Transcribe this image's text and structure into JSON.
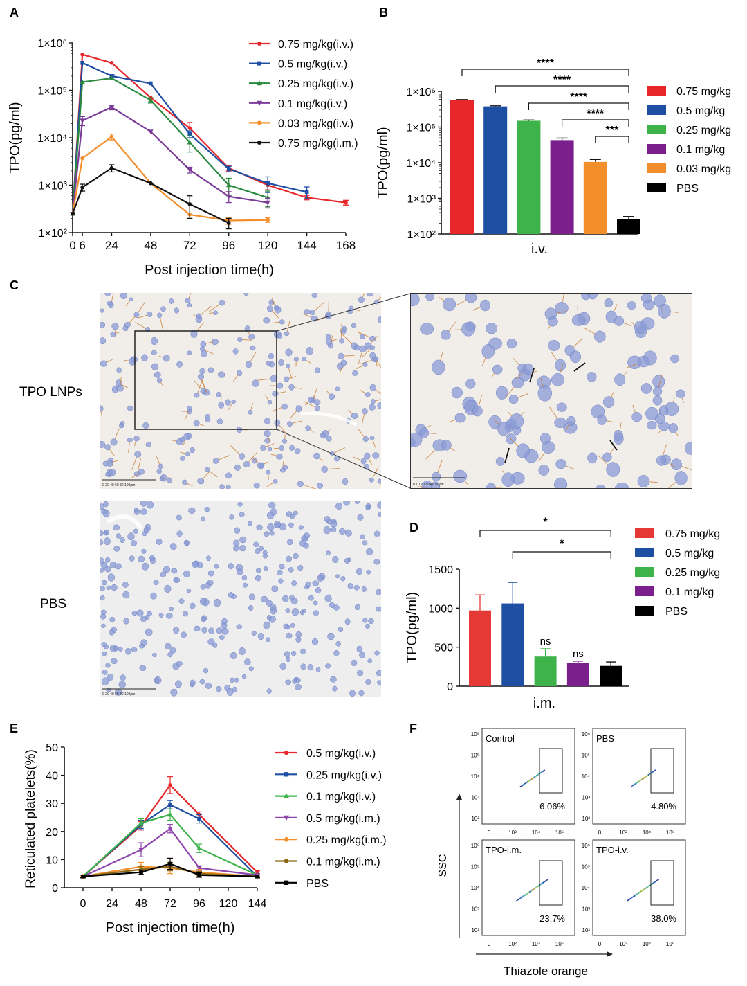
{
  "panels": {
    "A": "A",
    "B": "B",
    "C": "C",
    "D": "D",
    "E": "E",
    "F": "F"
  },
  "chart_data": [
    {
      "id": "A",
      "type": "line",
      "yscale": "log",
      "ylabel": "TPO(pg/ml)",
      "xlabel": "Post injection time(h)",
      "xticks": [
        0,
        6,
        24,
        48,
        72,
        96,
        120,
        144,
        168
      ],
      "xtick_labels": [
        "0",
        "6",
        "24",
        "48",
        "72",
        "96",
        "120",
        "144",
        "168"
      ],
      "ytick_labels": [
        "1×10²",
        "1×10³",
        "1×10⁴",
        "1×10⁵",
        "1×10⁶"
      ],
      "ylim": [
        100,
        1000000
      ],
      "series": [
        {
          "name": "0.75 mg/kg(i.v.)",
          "color": "#e8272a",
          "x": [
            0,
            6,
            24,
            48,
            72,
            96,
            120,
            144,
            168
          ],
          "values": [
            250,
            570000,
            380000,
            70000,
            16000,
            2300,
            1000,
            550,
            430
          ],
          "err": [
            0,
            0,
            0,
            0,
            5000,
            300,
            200,
            60,
            50
          ]
        },
        {
          "name": "0.5 mg/kg(i.v.)",
          "color": "#1f4fa3",
          "x": [
            0,
            6,
            24,
            48,
            72,
            96,
            120,
            144,
            168
          ],
          "values": [
            250,
            380000,
            200000,
            140000,
            12000,
            2200,
            1100,
            720,
            null
          ],
          "err": [
            0,
            0,
            15000,
            0,
            2000,
            300,
            400,
            200,
            0
          ]
        },
        {
          "name": "0.25 mg/kg(i.v.)",
          "color": "#2a8a3e",
          "x": [
            0,
            6,
            24,
            48,
            72,
            96,
            120
          ],
          "values": [
            250,
            150000,
            180000,
            62000,
            8000,
            1000,
            550
          ],
          "err": [
            0,
            0,
            0,
            8000,
            3000,
            400,
            200
          ]
        },
        {
          "name": "0.1 mg/kg(i.v.)",
          "color": "#7b3b98",
          "x": [
            0,
            6,
            24,
            48,
            72,
            96,
            120
          ],
          "values": [
            250,
            23000,
            44000,
            13500,
            2100,
            580,
            430
          ],
          "err": [
            0,
            5000,
            5000,
            0,
            300,
            150,
            100
          ]
        },
        {
          "name": "0.03 mg/kg(i.v.)",
          "color": "#f28e2b",
          "x": [
            0,
            6,
            24,
            48,
            72,
            96,
            120
          ],
          "values": [
            250,
            3700,
            10500,
            1100,
            240,
            180,
            185
          ],
          "err": [
            0,
            0,
            1500,
            0,
            0,
            30,
            20
          ]
        },
        {
          "name": "0.75 mg/kg(i.m.)",
          "color": "#111111",
          "x": [
            0,
            6,
            24,
            48,
            72,
            96
          ],
          "values": [
            250,
            900,
            2300,
            1100,
            400,
            160
          ],
          "err": [
            0,
            150,
            400,
            0,
            200,
            40
          ]
        }
      ]
    },
    {
      "id": "B",
      "type": "bar",
      "yscale": "log",
      "ylabel": "TPO(pg/ml)",
      "xlabel": "i.v.",
      "categories": [
        "0.75 mg/kg",
        "0.5 mg/kg",
        "0.25 mg/kg",
        "0.1 mg/kg",
        "0.03 mg/kg",
        "PBS"
      ],
      "colors": [
        "#e8272a",
        "#1f4fa3",
        "#3db34a",
        "#7b1f8c",
        "#f28e2b",
        "#000000"
      ],
      "values": [
        560000,
        380000,
        150000,
        43000,
        10500,
        260
      ],
      "err": [
        30000,
        15000,
        8000,
        6000,
        1800,
        50
      ],
      "ytick_labels": [
        "1×10²",
        "1×10³",
        "1×10⁴",
        "1×10⁵",
        "1×10⁶"
      ],
      "ylim": [
        100,
        1000000
      ],
      "significance": [
        "****",
        "****",
        "****",
        "****",
        "***"
      ]
    },
    {
      "id": "D",
      "type": "bar",
      "ylabel": "TPO(pg/ml)",
      "xlabel": "i.m.",
      "categories": [
        "0.75 mg/kg",
        "0.5 mg/kg",
        "0.25 mg/kg",
        "0.1 mg/kg",
        "PBS"
      ],
      "colors": [
        "#e53935",
        "#1f4fa3",
        "#3db34a",
        "#7b1f8c",
        "#000000"
      ],
      "values": [
        970,
        1060,
        380,
        300,
        260
      ],
      "err": [
        200,
        270,
        100,
        20,
        50
      ],
      "ylim": [
        0,
        1500
      ],
      "yticks": [
        0,
        500,
        1000,
        1500
      ],
      "ytick_labels": [
        "0",
        "500",
        "1000",
        "1500"
      ],
      "significance": [
        "*",
        "*"
      ],
      "bar_labels": [
        "",
        "",
        "ns",
        "ns",
        ""
      ]
    },
    {
      "id": "E",
      "type": "line",
      "ylabel": "Reticulated platelets(%)",
      "xlabel": "Post injection time(h)",
      "xticks": [
        0,
        24,
        48,
        72,
        96,
        120,
        144
      ],
      "xtick_labels": [
        "0",
        "24",
        "48",
        "72",
        "96",
        "120",
        "144"
      ],
      "yticks": [
        0,
        10,
        20,
        30,
        40,
        50
      ],
      "ytick_labels": [
        "0",
        "10",
        "20",
        "30",
        "40",
        "50"
      ],
      "ylim": [
        0,
        50
      ],
      "series": [
        {
          "name": "0.5 mg/kg(i.v.)",
          "color": "#e8272a",
          "marker": "circle",
          "x": [
            0,
            48,
            72,
            96,
            144
          ],
          "values": [
            4,
            22,
            36.5,
            26,
            5.5
          ],
          "err": [
            0.5,
            1.5,
            3,
            1,
            0.5
          ]
        },
        {
          "name": "0.25 mg/kg(i.v.)",
          "color": "#1f4fa3",
          "marker": "square",
          "x": [
            0,
            48,
            72,
            96,
            144
          ],
          "values": [
            4,
            22.5,
            29.5,
            24.5,
            4
          ],
          "err": [
            0.5,
            1.5,
            1.5,
            1.5,
            0.5
          ]
        },
        {
          "name": "0.1 mg/kg(i.v.)",
          "color": "#3db34a",
          "marker": "triangle",
          "x": [
            0,
            48,
            72,
            96,
            144
          ],
          "values": [
            4,
            23,
            26,
            14,
            4.5
          ],
          "err": [
            0.5,
            1.5,
            2,
            1.5,
            0.5
          ]
        },
        {
          "name": "0.5 mg/kg(i.m.)",
          "color": "#8e44ad",
          "marker": "triangle-down",
          "x": [
            0,
            48,
            72,
            96,
            144
          ],
          "values": [
            4,
            13.5,
            21,
            7,
            4.5
          ],
          "err": [
            0.5,
            2.5,
            1.5,
            0.8,
            0.5
          ]
        },
        {
          "name": "0.25 mg/kg(i.m.)",
          "color": "#f28e2b",
          "marker": "diamond",
          "x": [
            0,
            48,
            72,
            96,
            144
          ],
          "values": [
            4,
            7.5,
            7,
            5.5,
            4
          ],
          "err": [
            0.5,
            1.5,
            2,
            1,
            0.5
          ]
        },
        {
          "name": "0.1 mg/kg(i.m.)",
          "color": "#8b6914",
          "marker": "circle",
          "x": [
            0,
            48,
            72,
            96,
            144
          ],
          "values": [
            4,
            6.5,
            7.5,
            5,
            4
          ],
          "err": [
            0.5,
            1,
            1.5,
            0.8,
            0.5
          ]
        },
        {
          "name": "PBS",
          "color": "#000000",
          "marker": "square",
          "x": [
            0,
            48,
            72,
            96,
            144
          ],
          "values": [
            4,
            5.5,
            8.5,
            4.5,
            4
          ],
          "err": [
            0.5,
            0.8,
            2,
            0.8,
            0.5
          ]
        }
      ]
    }
  ],
  "panelC": {
    "row_labels": [
      "TPO LNPs",
      "PBS"
    ],
    "scalebar_labels": [
      "0 20 40 60 80 100μm",
      "0 10 20 30 40 50μm",
      "0 20 40 60 80 100μm"
    ]
  },
  "panelF": {
    "plots": [
      {
        "label": "Control",
        "percent": "6.06%"
      },
      {
        "label": "PBS",
        "percent": "4.80%"
      },
      {
        "label": "TPO-i.m.",
        "percent": "23.7%"
      },
      {
        "label": "TPO-i.v.",
        "percent": "38.0%"
      }
    ],
    "y_axis_label": "SSC",
    "x_axis_label": "Thiazole orange",
    "ytick_labels": [
      "10²",
      "10³",
      "10⁴",
      "10⁵",
      "10⁶"
    ],
    "xtick_labels": [
      "0",
      "10²",
      "10⁴",
      "10⁶"
    ]
  }
}
